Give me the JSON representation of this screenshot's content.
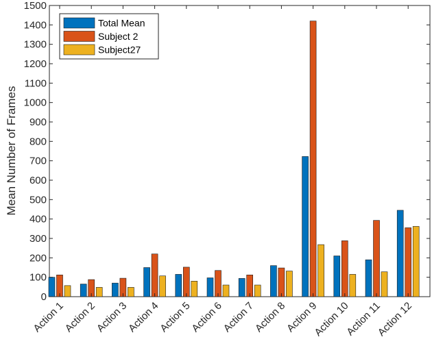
{
  "chart_data": {
    "type": "bar",
    "title": "",
    "xlabel": "",
    "ylabel": "Mean Number of Frames",
    "ylim": [
      0,
      1500
    ],
    "ytick_step": 100,
    "grid": false,
    "legend_position": "top-left",
    "categories": [
      "Action 1",
      "Action 2",
      "Action 3",
      "Action 4",
      "Action 5",
      "Action 6",
      "Action 7",
      "Action 8",
      "Action 9",
      "Action 10",
      "Action 11",
      "Action 12"
    ],
    "series": [
      {
        "name": "Total Mean",
        "color": "#0072BD",
        "values": [
          100,
          65,
          70,
          150,
          115,
          97,
          94,
          160,
          722,
          210,
          190,
          445
        ]
      },
      {
        "name": "Subject 2",
        "color": "#D95319",
        "values": [
          112,
          88,
          95,
          220,
          152,
          135,
          112,
          148,
          1420,
          288,
          393,
          355
        ]
      },
      {
        "name": "Subject27",
        "color": "#EDB120",
        "values": [
          57,
          48,
          48,
          107,
          80,
          60,
          60,
          132,
          268,
          115,
          128,
          362
        ]
      }
    ]
  }
}
